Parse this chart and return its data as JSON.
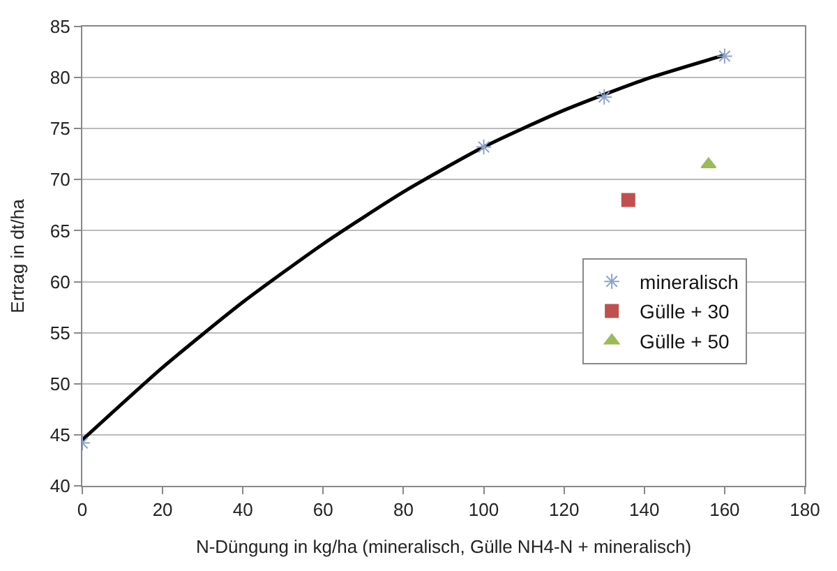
{
  "chart_data": {
    "type": "scatter",
    "xlabel": "N-Düngung in kg/ha (mineralisch, Gülle NH4-N + mineralisch)",
    "ylabel": "Ertrag in dt/ha",
    "xlim": [
      0,
      180
    ],
    "xticks": [
      0,
      20,
      40,
      60,
      80,
      100,
      120,
      140,
      160,
      180
    ],
    "ylim": [
      40,
      85
    ],
    "yticks": [
      40,
      45,
      50,
      55,
      60,
      65,
      70,
      75,
      80,
      85
    ],
    "grid": "y",
    "legend": "right",
    "series": [
      {
        "type": "line",
        "color": "#000000",
        "x": [
          0,
          20,
          40,
          60,
          80,
          100,
          120,
          140,
          160
        ],
        "values": [
          44.5,
          51.6,
          58.0,
          63.7,
          68.8,
          73.2,
          76.8,
          79.8,
          82.2
        ],
        "marker": "none",
        "line_style": "solid"
      },
      {
        "name": "mineralisch",
        "color": "#8ea4cc",
        "x": [
          0,
          100,
          130,
          160
        ],
        "values": [
          44.2,
          73.2,
          78.1,
          82.1
        ],
        "marker": "cross"
      },
      {
        "name": "Gülle + 30",
        "color": "#c0504d",
        "x": [
          136
        ],
        "values": [
          68.0
        ],
        "marker": "square"
      },
      {
        "name": "Gülle + 50",
        "color": "#9bbb59",
        "x": [
          156
        ],
        "values": [
          71.5
        ],
        "marker": "triangle"
      }
    ]
  }
}
